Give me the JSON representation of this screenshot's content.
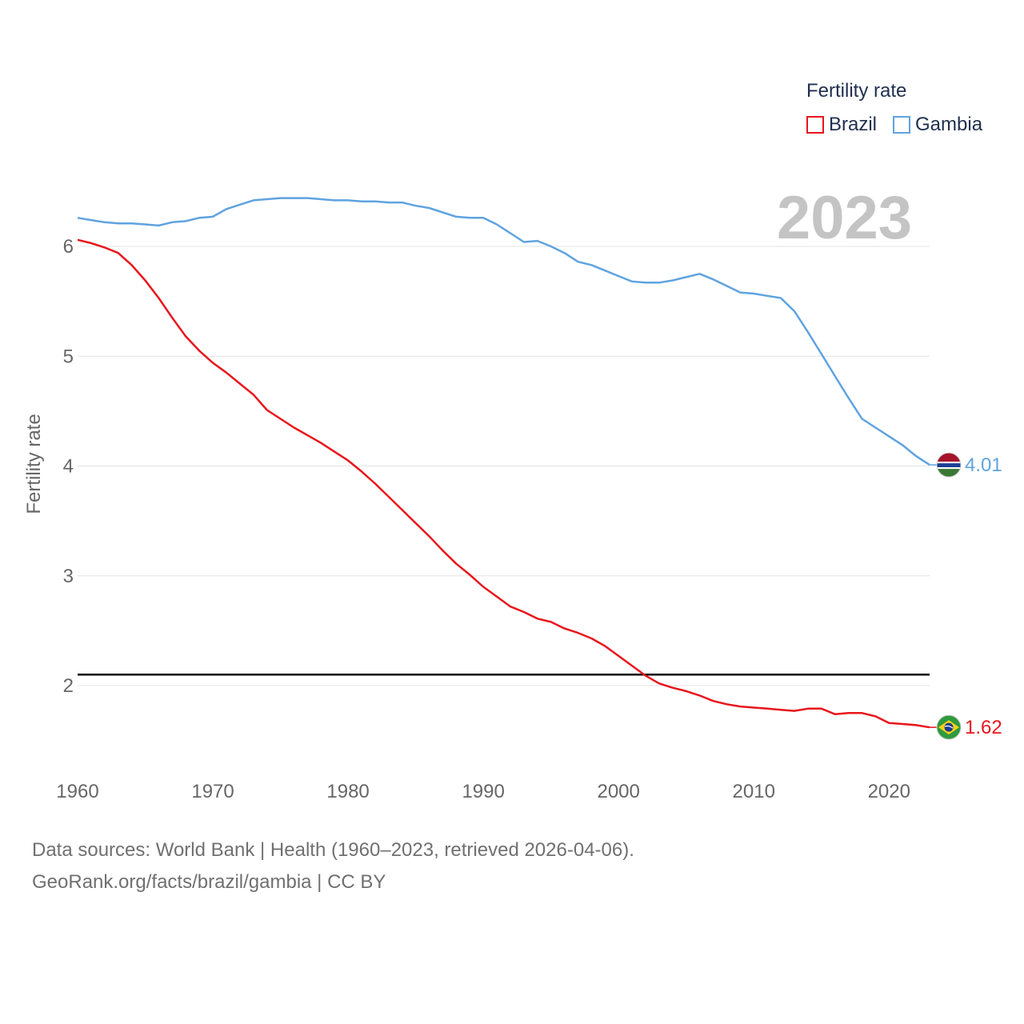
{
  "chart_data": {
    "type": "line",
    "title": "",
    "xlabel": "",
    "ylabel": "Fertility rate",
    "xlim": [
      1960,
      2023
    ],
    "ylim": [
      1.3,
      6.8
    ],
    "yticks": [
      2,
      3,
      4,
      5,
      6
    ],
    "xticks": [
      1960,
      1970,
      1980,
      1990,
      2000,
      2010,
      2020
    ],
    "year_label": "2023",
    "reference_line": 2.1,
    "legend_title": "Fertility rate",
    "x": [
      1960,
      1961,
      1962,
      1963,
      1964,
      1965,
      1966,
      1967,
      1968,
      1969,
      1970,
      1971,
      1972,
      1973,
      1974,
      1975,
      1976,
      1977,
      1978,
      1979,
      1980,
      1981,
      1982,
      1983,
      1984,
      1985,
      1986,
      1987,
      1988,
      1989,
      1990,
      1991,
      1992,
      1993,
      1994,
      1995,
      1996,
      1997,
      1998,
      1999,
      2000,
      2001,
      2002,
      2003,
      2004,
      2005,
      2006,
      2007,
      2008,
      2009,
      2010,
      2011,
      2012,
      2013,
      2014,
      2015,
      2016,
      2017,
      2018,
      2019,
      2020,
      2021,
      2022,
      2023
    ],
    "series": [
      {
        "name": "Brazil",
        "color": "#e8151b",
        "end_label": "1.62",
        "flag": "brazil-flag",
        "values": [
          6.06,
          6.03,
          5.99,
          5.94,
          5.83,
          5.69,
          5.53,
          5.35,
          5.18,
          5.05,
          4.94,
          4.85,
          4.75,
          4.65,
          4.51,
          4.43,
          4.35,
          4.28,
          4.21,
          4.13,
          4.05,
          3.95,
          3.84,
          3.72,
          3.6,
          3.48,
          3.36,
          3.23,
          3.11,
          3.01,
          2.9,
          2.81,
          2.72,
          2.67,
          2.61,
          2.58,
          2.52,
          2.48,
          2.43,
          2.36,
          2.27,
          2.18,
          2.09,
          2.02,
          1.98,
          1.95,
          1.91,
          1.86,
          1.83,
          1.81,
          1.8,
          1.79,
          1.78,
          1.77,
          1.79,
          1.79,
          1.74,
          1.75,
          1.75,
          1.72,
          1.66,
          1.65,
          1.64,
          1.62
        ]
      },
      {
        "name": "Gambia",
        "color": "#5fa3e0",
        "end_label": "4.01",
        "flag": "gambia-flag",
        "values": [
          6.26,
          6.24,
          6.22,
          6.21,
          6.21,
          6.2,
          6.19,
          6.22,
          6.23,
          6.26,
          6.27,
          6.34,
          6.38,
          6.42,
          6.43,
          6.44,
          6.44,
          6.44,
          6.43,
          6.42,
          6.42,
          6.41,
          6.41,
          6.4,
          6.4,
          6.37,
          6.35,
          6.31,
          6.27,
          6.26,
          6.26,
          6.2,
          6.12,
          6.04,
          6.05,
          6.0,
          5.94,
          5.86,
          5.83,
          5.78,
          5.73,
          5.68,
          5.67,
          5.67,
          5.69,
          5.72,
          5.75,
          5.7,
          5.64,
          5.58,
          5.57,
          5.55,
          5.53,
          5.41,
          5.22,
          5.02,
          4.82,
          4.62,
          4.43,
          4.35,
          4.27,
          4.19,
          4.09,
          4.01
        ]
      }
    ]
  },
  "footer": {
    "line1": "Data sources: World Bank | Health (1960–2023, retrieved 2026-04-06).",
    "line2": "GeoRank.org/facts/brazil/gambia | CC BY"
  }
}
